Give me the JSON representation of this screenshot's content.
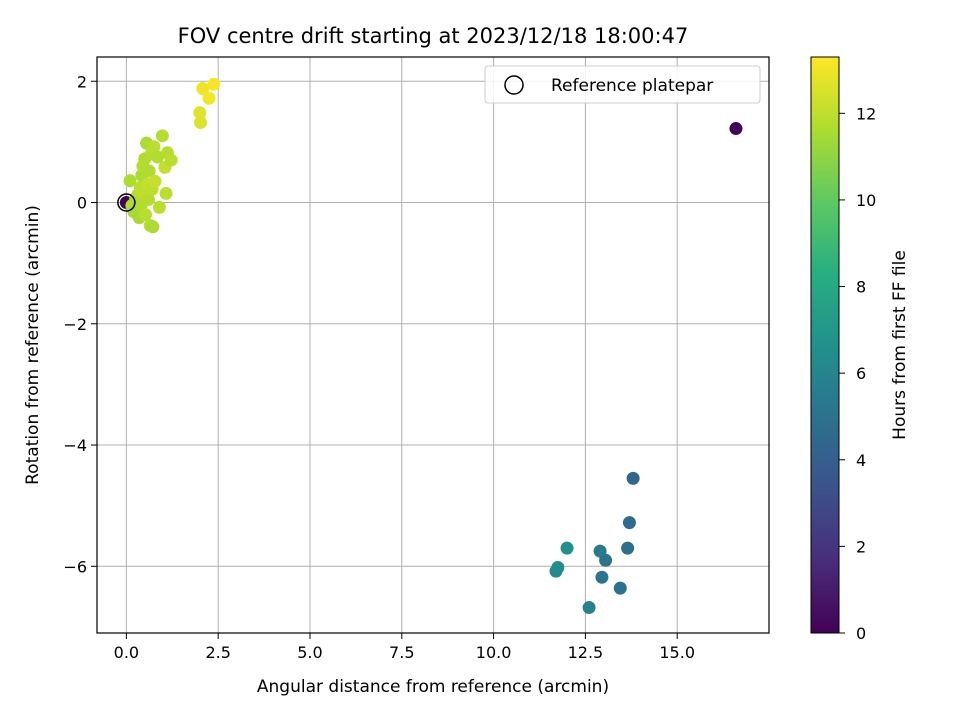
{
  "chart_data": {
    "type": "scatter",
    "title": "FOV centre drift starting at 2023/12/18 18:00:47",
    "xlabel": "Angular distance from reference (arcmin)",
    "ylabel": "Rotation from reference (arcmin)",
    "xlim": [
      -0.8,
      17.5
    ],
    "ylim": [
      -7.1,
      2.4
    ],
    "x_ticks": [
      0.0,
      2.5,
      5.0,
      7.5,
      10.0,
      12.5,
      15.0
    ],
    "x_tick_labels": [
      "0.0",
      "2.5",
      "5.0",
      "7.5",
      "10.0",
      "12.5",
      "15.0"
    ],
    "y_ticks": [
      2,
      0,
      -2,
      -4,
      -6
    ],
    "y_tick_labels": [
      "2",
      "0",
      "−2",
      "−4",
      "−6"
    ],
    "grid": true,
    "legend": {
      "placement": "top-right",
      "entries": [
        "Reference platepar"
      ]
    },
    "reference_point": {
      "x": 0,
      "y": 0
    },
    "colorbar": {
      "label": "Hours from first FF file",
      "range": [
        0,
        13.3
      ],
      "ticks": [
        0,
        2,
        4,
        6,
        8,
        10,
        12
      ],
      "tick_labels": [
        "0",
        "2",
        "4",
        "6",
        "8",
        "10",
        "12"
      ],
      "colormap": "viridis"
    },
    "points": [
      {
        "x": 0.0,
        "y": 0.0,
        "c": 0.1
      },
      {
        "x": 16.6,
        "y": 1.22,
        "c": 0.1
      },
      {
        "x": 12.6,
        "y": -6.68,
        "c": 5.8
      },
      {
        "x": 11.7,
        "y": -6.08,
        "c": 6.3
      },
      {
        "x": 11.75,
        "y": -6.02,
        "c": 6.4
      },
      {
        "x": 12.0,
        "y": -5.7,
        "c": 6.6
      },
      {
        "x": 12.9,
        "y": -5.75,
        "c": 5.5
      },
      {
        "x": 12.95,
        "y": -6.18,
        "c": 5.2
      },
      {
        "x": 13.05,
        "y": -5.9,
        "c": 5.1
      },
      {
        "x": 13.45,
        "y": -6.36,
        "c": 5.0
      },
      {
        "x": 13.65,
        "y": -5.7,
        "c": 4.8
      },
      {
        "x": 13.7,
        "y": -5.28,
        "c": 4.6
      },
      {
        "x": 13.8,
        "y": -4.55,
        "c": 4.4
      },
      {
        "x": 0.1,
        "y": 0.36,
        "c": 11.6
      },
      {
        "x": 0.15,
        "y": -0.05,
        "c": 11.7
      },
      {
        "x": 0.2,
        "y": -0.15,
        "c": 11.5
      },
      {
        "x": 0.25,
        "y": 0.05,
        "c": 11.6
      },
      {
        "x": 0.3,
        "y": 0.12,
        "c": 11.8
      },
      {
        "x": 0.35,
        "y": -0.25,
        "c": 11.5
      },
      {
        "x": 0.38,
        "y": 0.25,
        "c": 11.9
      },
      {
        "x": 0.4,
        "y": -0.05,
        "c": 11.7
      },
      {
        "x": 0.42,
        "y": 0.45,
        "c": 11.6
      },
      {
        "x": 0.45,
        "y": 0.6,
        "c": 11.8
      },
      {
        "x": 0.48,
        "y": 0.15,
        "c": 12.0
      },
      {
        "x": 0.5,
        "y": 0.72,
        "c": 11.7
      },
      {
        "x": 0.52,
        "y": -0.2,
        "c": 11.9
      },
      {
        "x": 0.55,
        "y": 0.98,
        "c": 11.6
      },
      {
        "x": 0.58,
        "y": 0.3,
        "c": 12.1
      },
      {
        "x": 0.6,
        "y": 0.05,
        "c": 11.8
      },
      {
        "x": 0.62,
        "y": 0.52,
        "c": 11.7
      },
      {
        "x": 0.65,
        "y": -0.38,
        "c": 11.9
      },
      {
        "x": 0.68,
        "y": 0.8,
        "c": 11.8
      },
      {
        "x": 0.7,
        "y": 0.22,
        "c": 12.0
      },
      {
        "x": 0.72,
        "y": -0.4,
        "c": 11.6
      },
      {
        "x": 0.75,
        "y": 0.92,
        "c": 11.9
      },
      {
        "x": 0.78,
        "y": 0.35,
        "c": 12.2
      },
      {
        "x": 0.85,
        "y": 0.75,
        "c": 11.7
      },
      {
        "x": 0.9,
        "y": -0.08,
        "c": 11.9
      },
      {
        "x": 0.98,
        "y": 1.1,
        "c": 11.8
      },
      {
        "x": 1.05,
        "y": 0.58,
        "c": 12.1
      },
      {
        "x": 1.08,
        "y": 0.15,
        "c": 11.9
      },
      {
        "x": 1.12,
        "y": 0.82,
        "c": 11.8
      },
      {
        "x": 1.22,
        "y": 0.7,
        "c": 11.9
      },
      {
        "x": 2.0,
        "y": 1.48,
        "c": 12.7
      },
      {
        "x": 2.02,
        "y": 1.32,
        "c": 12.6
      },
      {
        "x": 2.08,
        "y": 1.88,
        "c": 13.0
      },
      {
        "x": 2.25,
        "y": 1.72,
        "c": 13.1
      },
      {
        "x": 2.38,
        "y": 1.95,
        "c": 13.2
      }
    ]
  }
}
